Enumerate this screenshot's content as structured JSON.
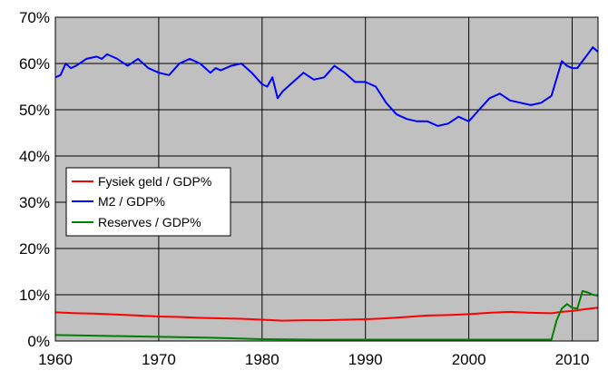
{
  "chart_data": {
    "type": "line",
    "title": "",
    "xlabel": "",
    "ylabel": "",
    "xlim": [
      1960,
      2012.5
    ],
    "ylim": [
      0,
      70
    ],
    "x_ticks": [
      "1960",
      "1970",
      "1980",
      "1990",
      "2000",
      "2010"
    ],
    "y_ticks": [
      "0%",
      "10%",
      "20%",
      "30%",
      "40%",
      "50%",
      "60%",
      "70%"
    ],
    "grid": true,
    "plot_background": "#c0c0c0",
    "legend_position": "left-middle",
    "series": [
      {
        "name": "Fysiek geld / GDP%",
        "color": "#ff0000",
        "x": [
          1960,
          1962,
          1964,
          1966,
          1968,
          1970,
          1972,
          1974,
          1976,
          1978,
          1980,
          1982,
          1984,
          1986,
          1988,
          1990,
          1992,
          1994,
          1996,
          1998,
          2000,
          2002,
          2004,
          2006,
          2008,
          2009,
          2010,
          2011,
          2012.5
        ],
        "y": [
          6.2,
          6.0,
          5.9,
          5.7,
          5.5,
          5.3,
          5.2,
          5.0,
          4.9,
          4.8,
          4.6,
          4.4,
          4.5,
          4.5,
          4.6,
          4.7,
          4.9,
          5.2,
          5.5,
          5.6,
          5.8,
          6.1,
          6.3,
          6.1,
          6.0,
          6.3,
          6.5,
          6.8,
          7.2
        ]
      },
      {
        "name": "M2 / GDP%",
        "color": "#0000ff",
        "x": [
          1960,
          1960.5,
          1961,
          1961.5,
          1962,
          1963,
          1964,
          1964.5,
          1965,
          1966,
          1967,
          1968,
          1969,
          1970,
          1971,
          1972,
          1973,
          1974,
          1975,
          1975.5,
          1976,
          1977,
          1978,
          1979,
          1980,
          1980.5,
          1981,
          1981.5,
          1982,
          1983,
          1984,
          1985,
          1986,
          1987,
          1988,
          1989,
          1990,
          1991,
          1992,
          1993,
          1994,
          1995,
          1996,
          1997,
          1998,
          1999,
          2000,
          2001,
          2002,
          2003,
          2004,
          2005,
          2006,
          2007,
          2008,
          2009,
          2009.5,
          2010,
          2010.5,
          2011,
          2011.5,
          2012,
          2012.5
        ],
        "y": [
          57,
          57.5,
          60,
          59,
          59.5,
          61,
          61.5,
          61,
          62,
          61,
          59.5,
          61,
          59,
          58,
          57.5,
          60,
          61,
          60,
          58,
          59,
          58.5,
          59.5,
          60,
          58,
          55.5,
          55,
          57,
          52.5,
          54,
          56,
          58,
          56.5,
          57,
          59.5,
          58,
          56,
          56,
          55,
          51.5,
          49,
          48,
          47.5,
          47.5,
          46.5,
          47,
          48.5,
          47.5,
          50,
          52.5,
          53.5,
          52,
          51.5,
          51,
          51.5,
          53,
          60.5,
          59.5,
          59,
          59,
          60.5,
          62,
          63.5,
          62.5
        ]
      },
      {
        "name": "Reserves / GDP%",
        "color": "#008000",
        "x": [
          1960,
          1965,
          1970,
          1975,
          1980,
          1985,
          1990,
          1995,
          2000,
          2005,
          2008,
          2008.5,
          2009,
          2009.5,
          2010,
          2010.5,
          2011,
          2011.5,
          2012,
          2012.5
        ],
        "y": [
          1.3,
          1.1,
          0.9,
          0.7,
          0.4,
          0.3,
          0.3,
          0.3,
          0.3,
          0.3,
          0.3,
          4.5,
          7.0,
          8.0,
          7.2,
          7.0,
          10.8,
          10.5,
          10.0,
          9.8
        ]
      }
    ]
  }
}
